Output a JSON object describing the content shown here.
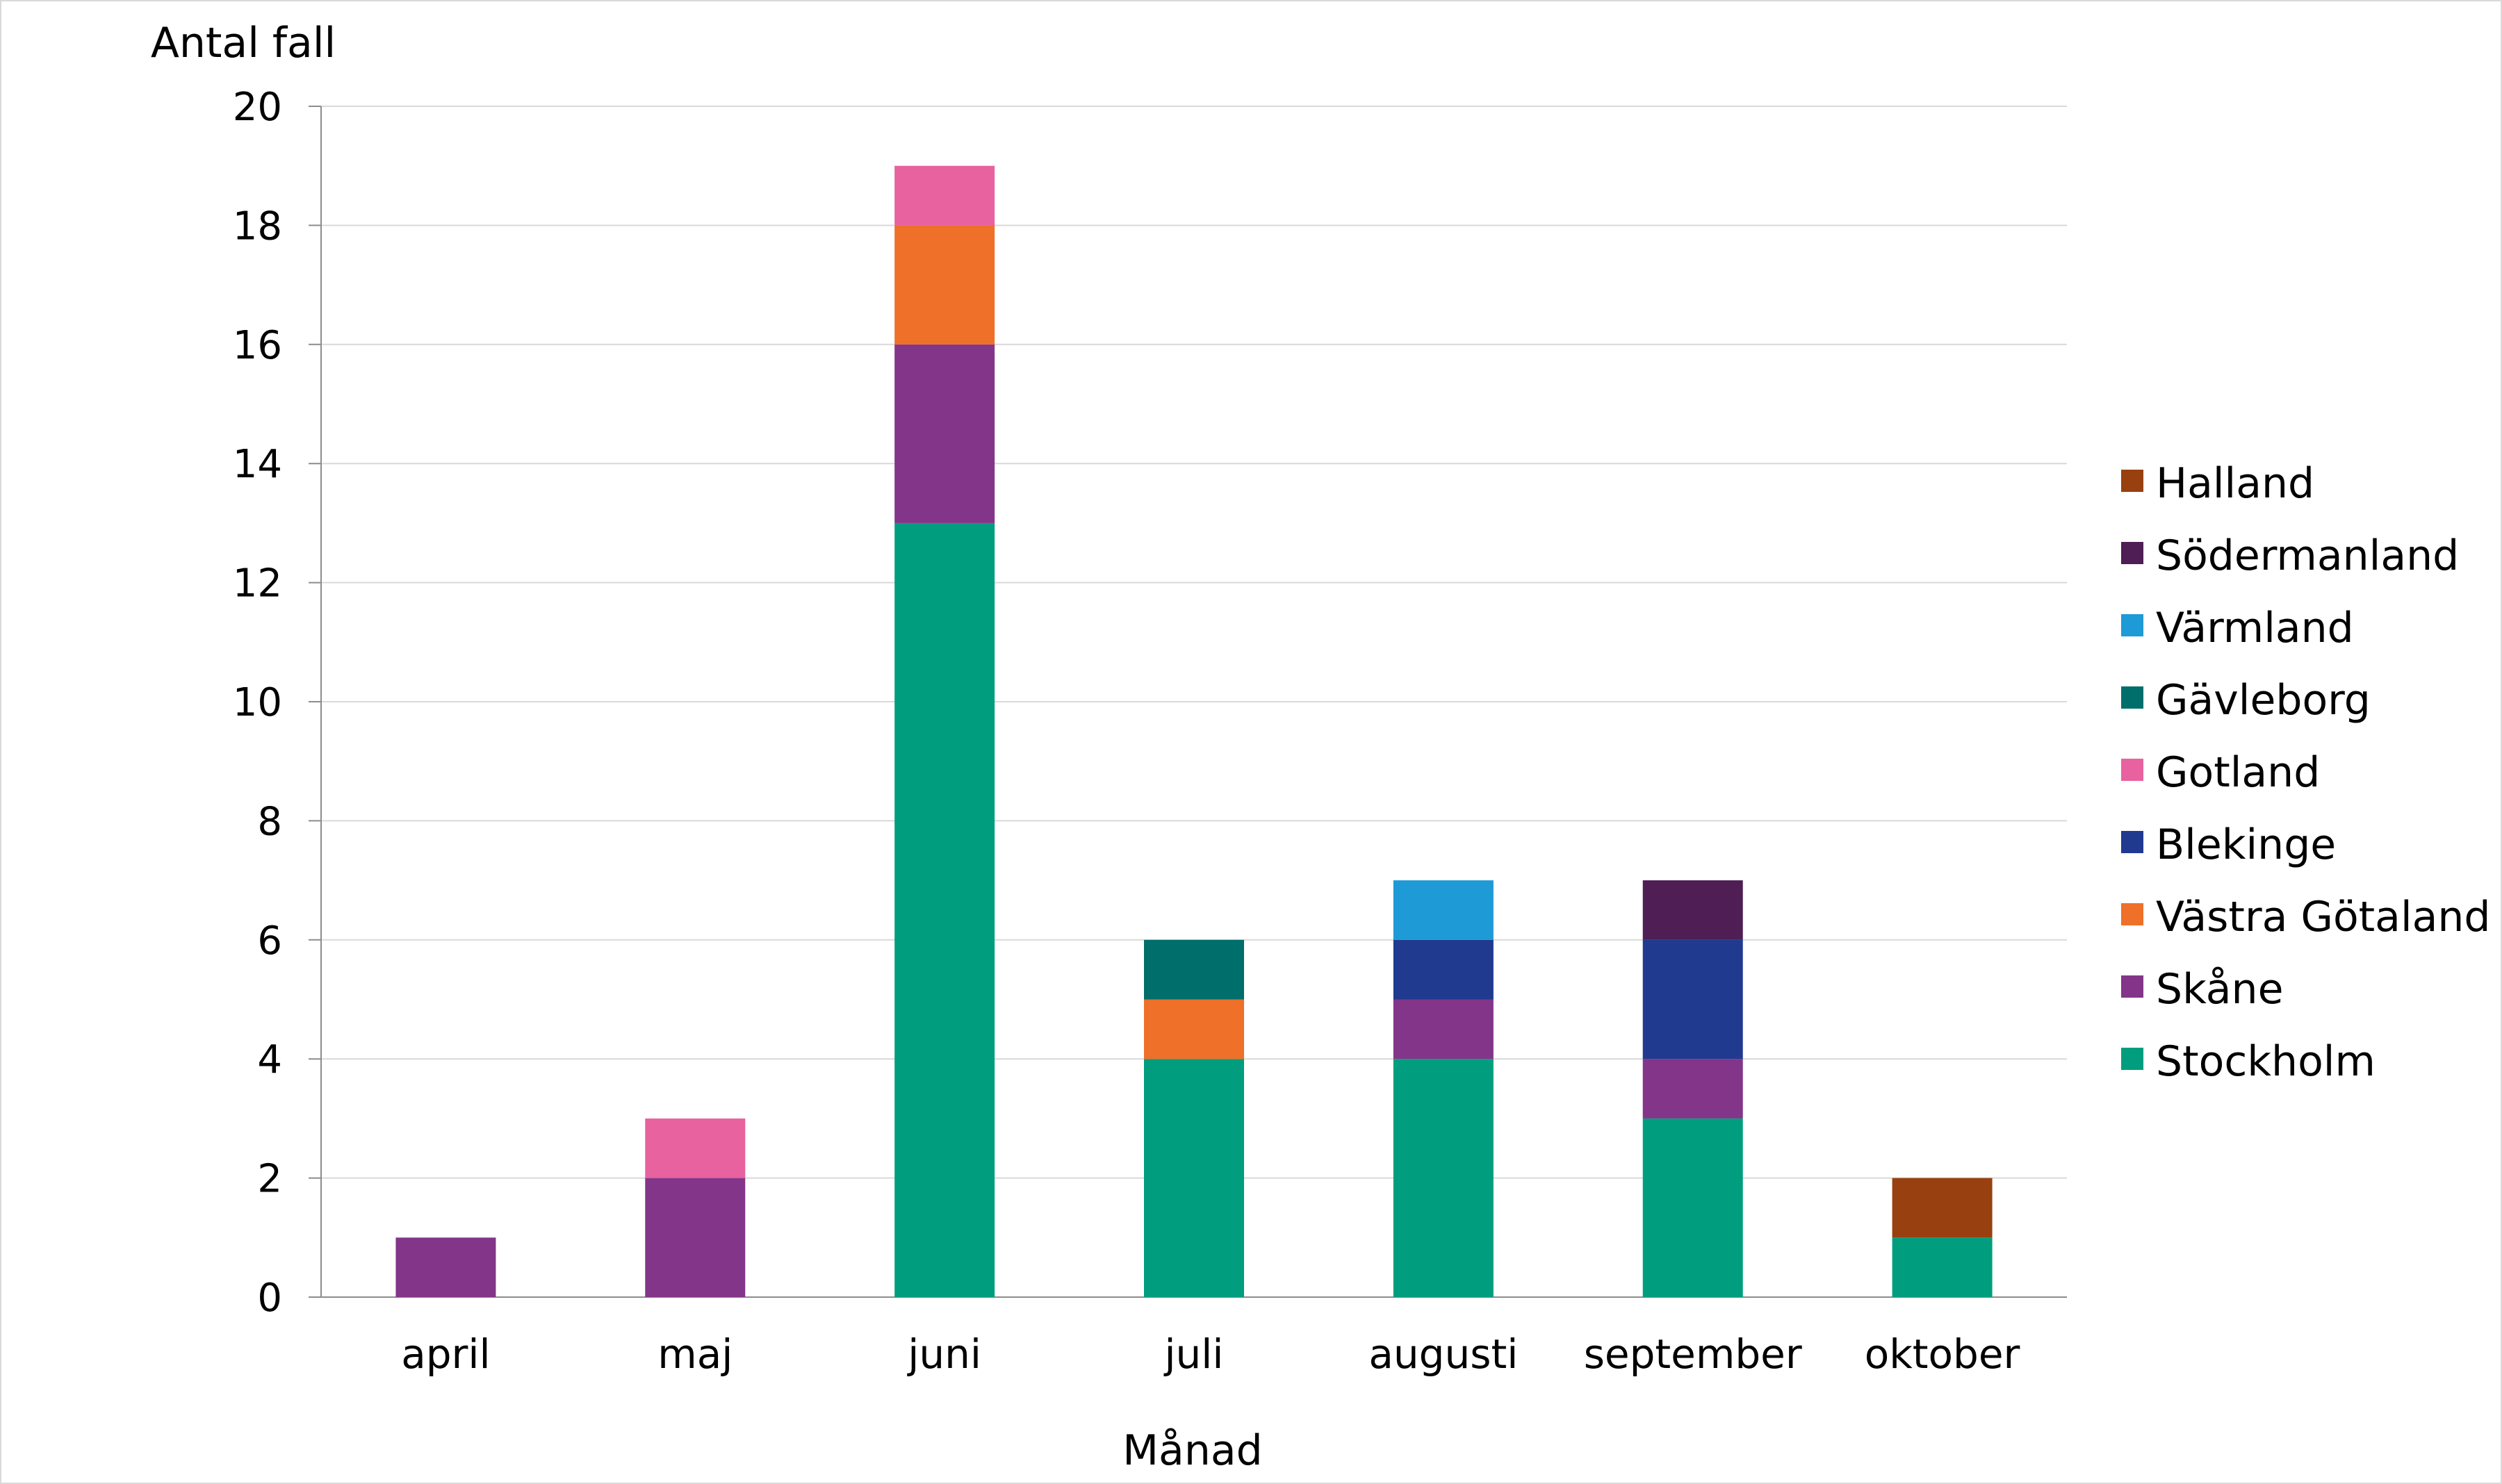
{
  "chart_data": {
    "type": "bar",
    "stacked": true,
    "title": "",
    "ylabel": "Antal fall",
    "xlabel": "Månad",
    "ylim": [
      0,
      20
    ],
    "yticks": [
      0,
      2,
      4,
      6,
      8,
      10,
      12,
      14,
      16,
      18,
      20
    ],
    "grid": true,
    "legend_position": "right",
    "categories": [
      "april",
      "maj",
      "juni",
      "juli",
      "augusti",
      "september",
      "oktober"
    ],
    "series": [
      {
        "name": "Stockholm",
        "color": "#009e7e",
        "values": [
          0,
          0,
          13,
          4,
          4,
          3,
          1
        ]
      },
      {
        "name": "Skåne",
        "color": "#833589",
        "values": [
          1,
          2,
          3,
          0,
          1,
          1,
          0
        ]
      },
      {
        "name": "Västra Götaland",
        "color": "#ee7029",
        "values": [
          0,
          0,
          2,
          1,
          0,
          0,
          0
        ]
      },
      {
        "name": "Blekinge",
        "color": "#1f3a8f",
        "values": [
          0,
          0,
          0,
          0,
          1,
          2,
          0
        ]
      },
      {
        "name": "Gotland",
        "color": "#e7629f",
        "values": [
          0,
          1,
          1,
          0,
          0,
          0,
          0
        ]
      },
      {
        "name": "Gävleborg",
        "color": "#006e6b",
        "values": [
          0,
          0,
          0,
          1,
          0,
          0,
          0
        ]
      },
      {
        "name": "Värmland",
        "color": "#1e9ad6",
        "values": [
          0,
          0,
          0,
          0,
          1,
          0,
          0
        ]
      },
      {
        "name": "Södermanland",
        "color": "#4e1e54",
        "values": [
          0,
          0,
          0,
          0,
          0,
          1,
          0
        ]
      },
      {
        "name": "Halland",
        "color": "#98400f",
        "values": [
          0,
          0,
          0,
          0,
          0,
          0,
          1
        ]
      }
    ]
  }
}
